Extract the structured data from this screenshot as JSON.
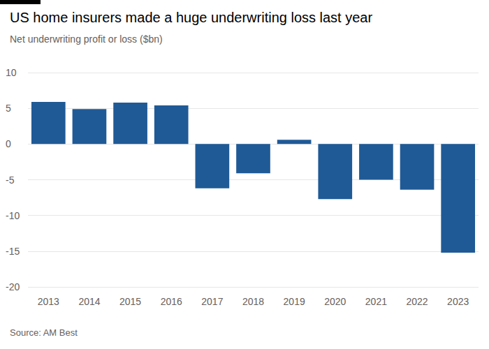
{
  "chart_data": {
    "type": "bar",
    "title": "US home insurers made a huge underwriting loss last year",
    "subtitle": "Net underwriting profit or loss ($bn)",
    "source": "Source: AM Best",
    "categories": [
      "2013",
      "2014",
      "2015",
      "2016",
      "2017",
      "2018",
      "2019",
      "2020",
      "2021",
      "2022",
      "2023"
    ],
    "values": [
      5.9,
      4.9,
      5.8,
      5.4,
      -6.2,
      -4.1,
      0.6,
      -7.7,
      -5.0,
      -6.4,
      -15.2
    ],
    "color": "#1f5a96",
    "ylim": [
      -20,
      10
    ],
    "yticks": [
      -20,
      -15,
      -10,
      -5,
      0,
      5,
      10
    ],
    "grid": true
  }
}
